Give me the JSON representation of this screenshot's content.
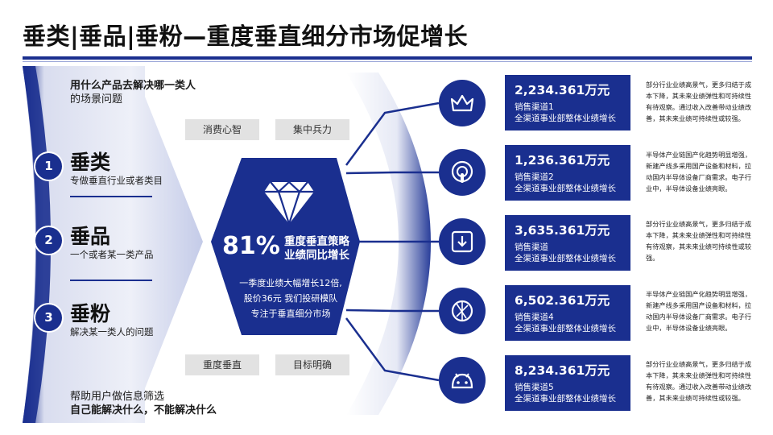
{
  "title": "垂类|垂品|垂粉—重度垂直细分市场促增长",
  "left": {
    "top_question_line1": "用什么产品去解决哪一类人",
    "top_question_line2": "的场景问题",
    "bottom_line1": "帮助用户做信息筛选",
    "bottom_line2": "自己能解决什么，不能解决什么",
    "items": [
      {
        "num": "1",
        "title": "垂类",
        "sub": "专做垂直行业或者类目"
      },
      {
        "num": "2",
        "title": "垂品",
        "sub": "一个或者某一类产品"
      },
      {
        "num": "3",
        "title": "垂粉",
        "sub": "解决某一类人的问题"
      }
    ]
  },
  "tags": [
    "消费心智",
    "集中兵力",
    "重度垂直",
    "目标明确"
  ],
  "center": {
    "icon": "diamond-icon",
    "percent": "81%",
    "label_line1": "重度垂直策略",
    "label_line2": "业绩同比增长",
    "desc_line1": "一季度业绩大幅增长12倍,",
    "desc_line2": "股价36元 我们投研模队",
    "desc_line3": "专注于垂直细分市场"
  },
  "rows": [
    {
      "icon": "crown-icon",
      "value": "2,234.361万元",
      "s1": "销售渠道1",
      "s2": "全渠道事业部整体业绩增长",
      "note": "部分行业业绩高景气，更多归结于成本下降，其未来业绩弹性和可持续性有待观察。通过收入改善带动业绩改善，其未来业绩可持续性或较强。"
    },
    {
      "icon": "podcast-icon",
      "value": "1,236.361万元",
      "s1": "销售渠道2",
      "s2": "全渠道事业部整体业绩增长",
      "note": "半导体产业链国产化趋势明显增强，新建产线多采用国产设备和材料，拉动国内半导体设备厂商需求。电子行业中，半导体设备业绩亮眼。"
    },
    {
      "icon": "download-icon",
      "value": "3,635.361万元",
      "s1": "销售渠道",
      "s2": "全渠道事业部整体业绩增长",
      "note": "部分行业业绩高景气，更多归结于成本下降，其未来业绩弹性和可持续性有待观察，其未来业绩可持续性或较强。"
    },
    {
      "icon": "aperture-icon",
      "value": "6,502.361万元",
      "s1": "销售渠道4",
      "s2": "全渠道事业部整体业绩增长",
      "note": "半导体产业链国产化趋势明显增强，新建产线多采用国产设备和材料，拉动国内半导体设备厂商需求。电子行业中，半导体设备业绩亮眼。"
    },
    {
      "icon": "android-icon",
      "value": "8,234.361万元",
      "s1": "销售渠道5",
      "s2": "全渠道事业部整体业绩增长",
      "note": "部分行业业绩高景气，更多归结于成本下降，其未来业绩弹性和可持续性有待观察。通过收入改善带动业绩改善，其未来业绩可持续性或较强。"
    }
  ],
  "colors": {
    "primary": "#1a2f8f",
    "tag_bg": "#e2e2e2"
  }
}
